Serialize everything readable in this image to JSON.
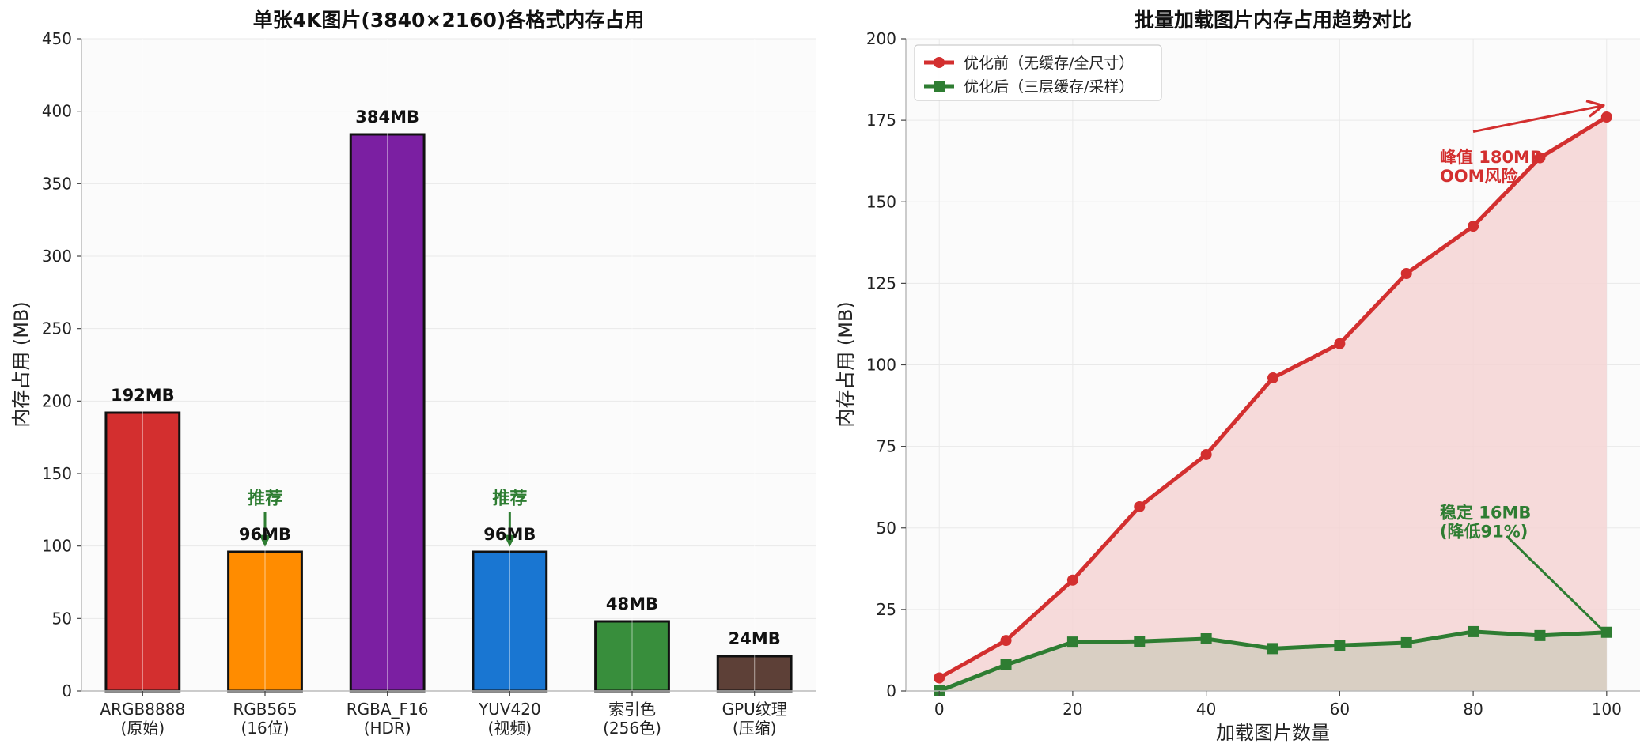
{
  "chart_data": [
    {
      "type": "bar",
      "title": "单张4K图片(3840×2160)各格式内存占用",
      "xlabel": "",
      "ylabel": "内存占用 (MB)",
      "ylim": [
        0,
        450
      ],
      "yticks": [
        0,
        50,
        100,
        150,
        200,
        250,
        300,
        350,
        400,
        450
      ],
      "grid": true,
      "categories": [
        [
          "ARGB8888",
          "(原始)"
        ],
        [
          "RGB565",
          "(16位)"
        ],
        [
          "RGBA_F16",
          "(HDR)"
        ],
        [
          "YUV420",
          "(视频)"
        ],
        [
          "索引色",
          "(256色)"
        ],
        [
          "GPU纹理",
          "(压缩)"
        ]
      ],
      "values": [
        192,
        96,
        384,
        96,
        48,
        24
      ],
      "data_labels": [
        "192MB",
        "96MB",
        "384MB",
        "96MB",
        "48MB",
        "24MB"
      ],
      "colors": [
        "#d32f2f",
        "#ff8c00",
        "#7b1fa2",
        "#1976d2",
        "#388e3c",
        "#5d4037"
      ],
      "annotations": [
        {
          "text": "推荐",
          "category_index": 1,
          "color": "#2e7d32",
          "text_y": 140,
          "arrow_to_y": 100
        },
        {
          "text": "推荐",
          "category_index": 3,
          "color": "#2e7d32",
          "text_y": 140,
          "arrow_to_y": 100
        }
      ]
    },
    {
      "type": "line",
      "title": "批量加载图片内存占用趋势对比",
      "xlabel": "加载图片数量",
      "ylabel": "内存占用 (MB)",
      "xlim": [
        -5,
        105
      ],
      "ylim": [
        0,
        200
      ],
      "xticks": [
        0,
        20,
        40,
        60,
        80,
        100
      ],
      "yticks": [
        0,
        25,
        50,
        75,
        100,
        125,
        150,
        175,
        200
      ],
      "grid": true,
      "legend_position": "top-left",
      "x": [
        0,
        10,
        20,
        30,
        40,
        50,
        60,
        70,
        80,
        90,
        100
      ],
      "series": [
        {
          "name": "优化前（无缓存/全尺寸）",
          "values": [
            4,
            15.5,
            34,
            56.5,
            72.5,
            96,
            106.5,
            128,
            142.5,
            163.5,
            176
          ],
          "color": "#d32f2f",
          "fill": "#f4d3d3",
          "marker": "circle"
        },
        {
          "name": "优化后（三层缓存/采样）",
          "values": [
            0,
            8,
            15,
            15.2,
            16,
            13,
            14,
            14.8,
            18.2,
            17,
            18
          ],
          "color": "#2e7d32",
          "fill": "#d7cfc2",
          "marker": "square"
        }
      ],
      "annotations": [
        {
          "lines": [
            "峰值 180MB",
            "OOM风险"
          ],
          "color": "#d32f2f",
          "text_x": 75,
          "text_y": 162,
          "arrow_from": [
            80,
            171.5
          ],
          "arrow_to": [
            99.5,
            179.5
          ]
        },
        {
          "lines": [
            "稳定 16MB",
            "(降低91%)"
          ],
          "color": "#2e7d32",
          "text_x": 75,
          "text_y": 53,
          "arrow_from": [
            85,
            47.5
          ],
          "arrow_to": [
            99.5,
            18.5
          ]
        }
      ]
    }
  ]
}
